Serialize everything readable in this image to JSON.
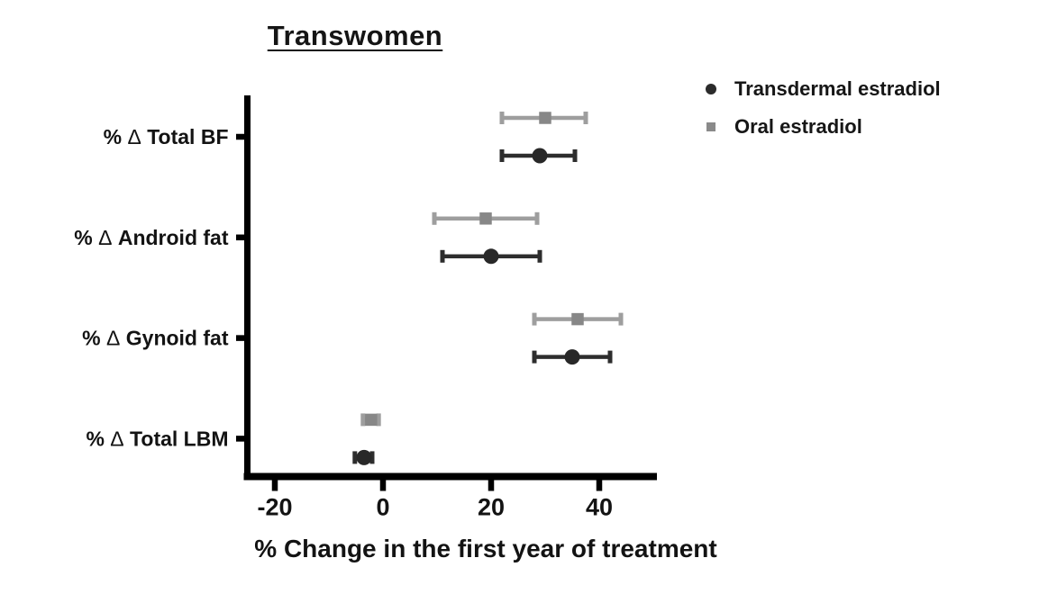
{
  "chart_data": {
    "type": "scatter",
    "subtype": "horizontal-error-bar-forest-plot",
    "title": "Transwomen",
    "xlabel": "% Change in the first year of treatment",
    "ylabel": "",
    "categories": [
      "% Δ Total BF",
      "% Δ Android fat",
      "% Δ Gynoid fat",
      "% Δ Total LBM"
    ],
    "x_ticks": [
      "-20",
      "0",
      "20",
      "40"
    ],
    "x_tick_values": [
      -20,
      0,
      20,
      40
    ],
    "xlim": [
      -25.5,
      50.5
    ],
    "grid": false,
    "legend_position": "top-right",
    "series": [
      {
        "name": "Transdermal estradiol",
        "marker": "circle",
        "marker_color": "#282828",
        "line_color": "#2d2d2d",
        "values": [
          {
            "category": "% Δ Total BF",
            "mean": 29,
            "lo": 22,
            "hi": 35.5
          },
          {
            "category": "% Δ Android fat",
            "mean": 20,
            "lo": 11,
            "hi": 29
          },
          {
            "category": "% Δ Gynoid fat",
            "mean": 35,
            "lo": 28,
            "hi": 42
          },
          {
            "category": "% Δ Total LBM",
            "mean": -3.5,
            "lo": -5.2,
            "hi": -2
          }
        ]
      },
      {
        "name": "Oral estradiol",
        "marker": "square",
        "marker_color": "#878787",
        "line_color": "#9e9e9e",
        "values": [
          {
            "category": "% Δ Total BF",
            "mean": 30,
            "lo": 22,
            "hi": 37.5
          },
          {
            "category": "% Δ Android fat",
            "mean": 19,
            "lo": 9.5,
            "hi": 28.5
          },
          {
            "category": "% Δ Gynoid fat",
            "mean": 36,
            "lo": 28,
            "hi": 44
          },
          {
            "category": "% Δ Total LBM",
            "mean": -2.2,
            "lo": -3.7,
            "hi": -0.8
          }
        ]
      }
    ],
    "axis_color": "#000000",
    "text_color": "#131313"
  }
}
